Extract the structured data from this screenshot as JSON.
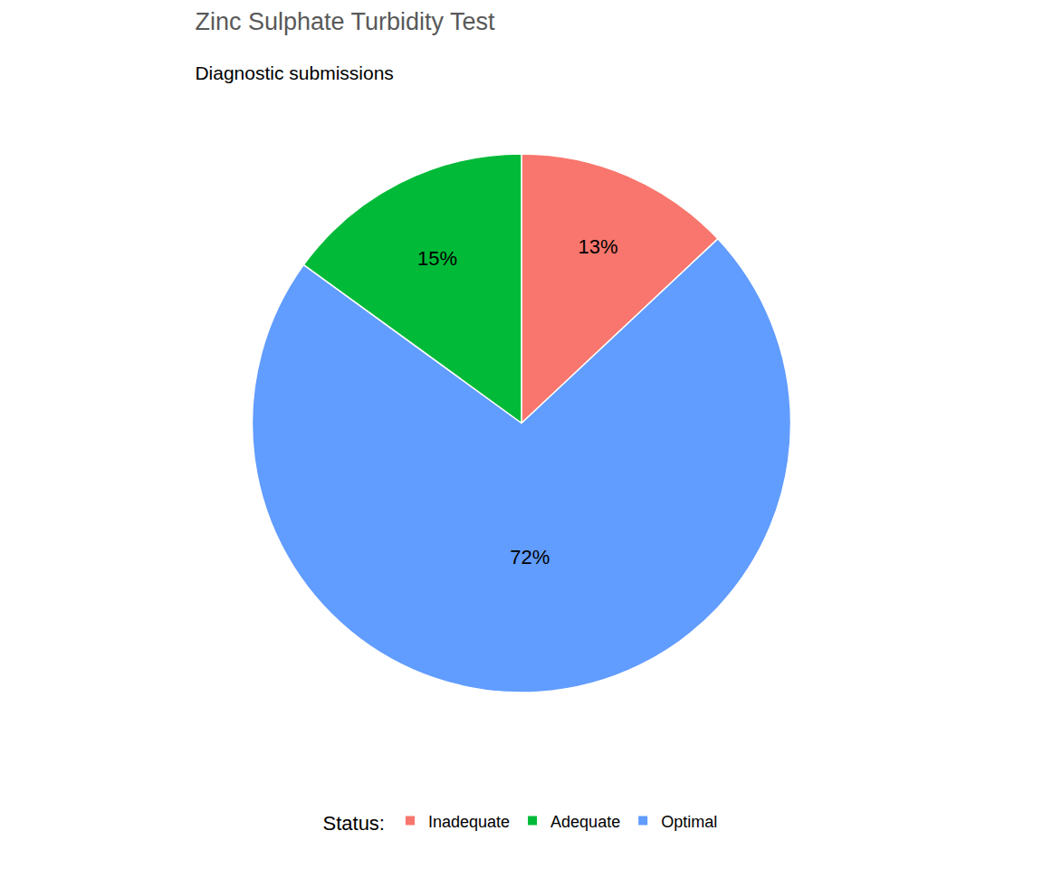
{
  "chart_data": {
    "type": "pie",
    "title": "Zinc Sulphate Turbidity Test",
    "subtitle": "Diagnostic submissions",
    "categories": [
      "Inadequate",
      "Adequate",
      "Optimal"
    ],
    "values": [
      13,
      15,
      72
    ],
    "value_labels": [
      "13%",
      "15%",
      "72%"
    ],
    "data_labels": true,
    "colors": [
      "#F8766D",
      "#00BA38",
      "#619CFF"
    ],
    "legend": "bottom",
    "legend_title": "Status:"
  }
}
